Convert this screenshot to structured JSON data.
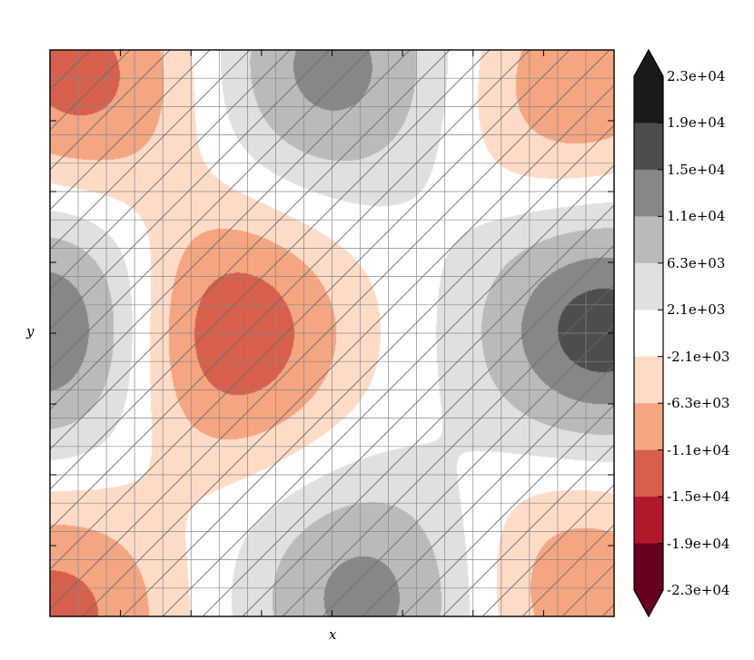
{
  "chart_data": {
    "type": "heatmap",
    "subtype": "filled-contour",
    "title": "",
    "xlabel": "x",
    "ylabel": "y",
    "xlim": [
      0,
      15
    ],
    "ylim": [
      0,
      15
    ],
    "grid": true,
    "hatch": "diagonal (/)",
    "x_tick_count": 8,
    "y_tick_count": 8,
    "colorbar": {
      "position": "right",
      "extend": "both",
      "tick_labels": [
        "2.3e+04",
        "1.9e+04",
        "1.5e+04",
        "1.1e+04",
        "6.3e+03",
        "2.1e+03",
        "-2.1e+03",
        "-6.3e+03",
        "-1.1e+04",
        "-1.5e+04",
        "-1.9e+04",
        "-2.3e+04"
      ],
      "levels": [
        23000,
        19000,
        15000,
        11000,
        6300,
        2100,
        -2100,
        -6300,
        -11000,
        -15000,
        -19000,
        -23000
      ],
      "band_colors": [
        "#1a1a1a",
        "#4d4d4d",
        "#878787",
        "#bababa",
        "#e0e0e0",
        "#ffffff",
        "#fddbc7",
        "#f4a582",
        "#d6604d",
        "#b2182b",
        "#67001f"
      ],
      "over_color": "#1a1a1a",
      "under_color": "#67001f"
    },
    "colormap": [
      "#67001f",
      "#b2182b",
      "#d6604d",
      "#f4a582",
      "#fddbc7",
      "#ffffff",
      "#e0e0e0",
      "#bababa",
      "#878787",
      "#4d4d4d",
      "#1a1a1a"
    ],
    "features": [
      {
        "type": "min",
        "x": 4.5,
        "y": 7.5,
        "value": -17000
      },
      {
        "type": "min",
        "x": 0.8,
        "y": 14.3,
        "value": -13000
      },
      {
        "type": "min",
        "x": 0.0,
        "y": 0.0,
        "value": -13000
      },
      {
        "type": "min",
        "x": 14.0,
        "y": 0.8,
        "value": -10000
      },
      {
        "type": "min",
        "x": 14.0,
        "y": 14.0,
        "value": -10000
      },
      {
        "type": "max",
        "x": 0.3,
        "y": 7.6,
        "value": 17500
      },
      {
        "type": "max",
        "x": 14.7,
        "y": 7.6,
        "value": 17500
      },
      {
        "type": "max",
        "x": 7.5,
        "y": 14.5,
        "value": 13000
      },
      {
        "type": "max",
        "x": 8.5,
        "y": 0.5,
        "value": 13000
      }
    ]
  }
}
